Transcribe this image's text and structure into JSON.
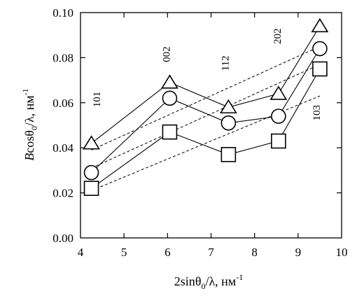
{
  "chart_data": {
    "type": "line",
    "title": "",
    "xlabel": {
      "pre": "2sin",
      "theta": "θ",
      "sub": "0",
      "post": "/λ,  нм",
      "sup": "-1"
    },
    "ylabel": {
      "italic": "B",
      "pre": "cos",
      "theta": "θ",
      "sub": "0",
      "post": "/λ,  нм",
      "sup": "-1"
    },
    "xlim": [
      4,
      10
    ],
    "ylim": [
      0,
      0.1
    ],
    "xticks": [
      4,
      5,
      6,
      7,
      8,
      9,
      10
    ],
    "xtick_labels": [
      "4",
      "5",
      "6",
      "7",
      "8",
      "9",
      "10"
    ],
    "yticks": [
      0,
      0.02,
      0.04,
      0.06,
      0.08,
      0.1
    ],
    "ytick_labels": [
      "0.00",
      "0.02",
      "0.04",
      "0.06",
      "0.08",
      "0.10"
    ],
    "grid": false,
    "series": [
      {
        "marker": "triangle",
        "x": [
          4.25,
          6.05,
          7.4,
          8.55,
          9.5
        ],
        "y": [
          0.042,
          0.069,
          0.058,
          0.064,
          0.094
        ]
      },
      {
        "marker": "circle",
        "x": [
          4.25,
          6.05,
          7.4,
          8.55,
          9.5
        ],
        "y": [
          0.029,
          0.062,
          0.051,
          0.054,
          0.084
        ]
      },
      {
        "marker": "square",
        "x": [
          4.25,
          6.05,
          7.4,
          8.55,
          9.5
        ],
        "y": [
          0.022,
          0.047,
          0.037,
          0.043,
          0.075
        ]
      }
    ],
    "trend_lines": [
      {
        "x": [
          4.25,
          9.5
        ],
        "y": [
          0.039,
          0.085
        ]
      },
      {
        "x": [
          4.25,
          9.5
        ],
        "y": [
          0.031,
          0.077
        ]
      },
      {
        "x": [
          4.25,
          9.5
        ],
        "y": [
          0.021,
          0.063
        ]
      }
    ],
    "annotations": [
      {
        "text": "101",
        "x": 4.45,
        "y": 0.0615
      },
      {
        "text": "002",
        "x": 6.05,
        "y": 0.0815
      },
      {
        "text": "112",
        "x": 7.4,
        "y": 0.0775
      },
      {
        "text": "202",
        "x": 8.6,
        "y": 0.0895
      },
      {
        "text": "103",
        "x": 9.5,
        "y": 0.0555
      }
    ]
  }
}
